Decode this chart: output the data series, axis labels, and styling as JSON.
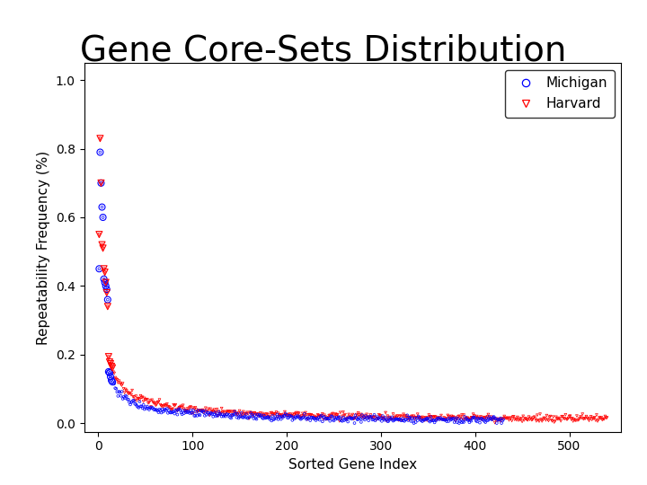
{
  "title": "Gene Core-Sets Distribution",
  "xlabel": "Sorted Gene Index",
  "ylabel": "Repeatability Frequency (%)",
  "xlim": [
    -15,
    555
  ],
  "ylim": [
    -0.025,
    1.05
  ],
  "xticks": [
    0,
    100,
    200,
    300,
    400,
    500
  ],
  "yticks": [
    0.0,
    0.2,
    0.4,
    0.6,
    0.8,
    1.0
  ],
  "michigan_n": 430,
  "harvard_n": 540,
  "michigan_color": "#0000FF",
  "harvard_color": "#FF0000",
  "title_fontsize": 28,
  "axis_fontsize": 11,
  "tick_fontsize": 10,
  "legend_fontsize": 11,
  "background_color": "#FFFFFF",
  "michigan_scale": 0.9,
  "michigan_exp": 0.75,
  "harvard_scale": 1.1,
  "harvard_exp": 0.72,
  "mich_top_x": [
    1,
    2,
    3,
    4,
    5,
    6,
    7,
    8,
    9,
    10
  ],
  "mich_top_y": [
    0.45,
    0.79,
    0.7,
    0.63,
    0.6,
    0.42,
    0.41,
    0.4,
    0.39,
    0.36
  ],
  "harv_top_x": [
    1,
    2,
    3,
    4,
    5,
    6,
    7,
    8,
    9,
    10
  ],
  "harv_top_y": [
    0.55,
    0.83,
    0.7,
    0.52,
    0.51,
    0.45,
    0.44,
    0.41,
    0.38,
    0.34
  ]
}
